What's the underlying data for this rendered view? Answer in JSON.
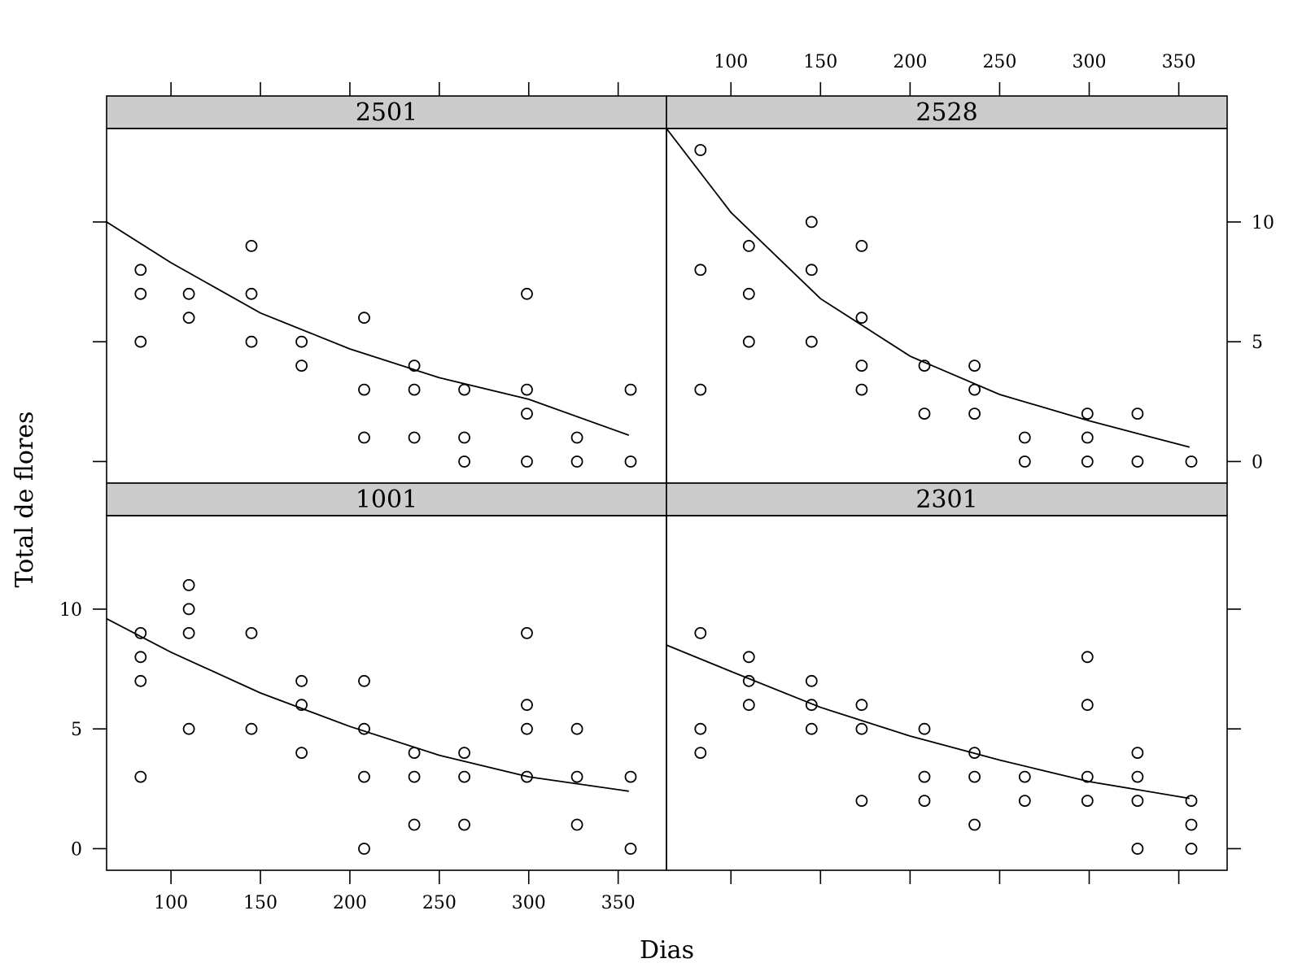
{
  "chart_data": {
    "type": "scatter",
    "xlabel": "Dias",
    "ylabel": "Total de flores",
    "xlim": [
      64,
      377
    ],
    "ylim": [
      -0.9,
      13.9
    ],
    "x_ticks": [
      100,
      150,
      200,
      250,
      300,
      350
    ],
    "y_ticks": [
      0,
      5,
      10
    ],
    "grid": false,
    "layout": "2x2 lattice",
    "panels": [
      {
        "label": "2501",
        "points": [
          [
            83,
            8
          ],
          [
            83,
            7
          ],
          [
            83,
            5
          ],
          [
            110,
            7
          ],
          [
            110,
            6
          ],
          [
            145,
            9
          ],
          [
            145,
            7
          ],
          [
            145,
            5
          ],
          [
            173,
            5
          ],
          [
            173,
            4
          ],
          [
            208,
            6
          ],
          [
            208,
            3
          ],
          [
            208,
            1
          ],
          [
            236,
            4
          ],
          [
            236,
            3
          ],
          [
            236,
            1
          ],
          [
            264,
            3
          ],
          [
            264,
            1
          ],
          [
            264,
            0
          ],
          [
            299,
            7
          ],
          [
            299,
            3
          ],
          [
            299,
            2
          ],
          [
            299,
            0
          ],
          [
            327,
            1
          ],
          [
            327,
            0
          ],
          [
            357,
            3
          ],
          [
            357,
            0
          ]
        ],
        "curve": [
          [
            64,
            10.0
          ],
          [
            100,
            8.3
          ],
          [
            150,
            6.2
          ],
          [
            200,
            4.7
          ],
          [
            250,
            3.5
          ],
          [
            300,
            2.6
          ],
          [
            356,
            1.1
          ]
        ]
      },
      {
        "label": "2528",
        "points": [
          [
            83,
            13
          ],
          [
            83,
            8
          ],
          [
            83,
            3
          ],
          [
            110,
            9
          ],
          [
            110,
            7
          ],
          [
            110,
            5
          ],
          [
            145,
            10
          ],
          [
            145,
            8
          ],
          [
            145,
            5
          ],
          [
            173,
            9
          ],
          [
            173,
            6
          ],
          [
            173,
            4
          ],
          [
            173,
            3
          ],
          [
            208,
            4
          ],
          [
            208,
            2
          ],
          [
            236,
            4
          ],
          [
            236,
            3
          ],
          [
            236,
            2
          ],
          [
            264,
            1
          ],
          [
            264,
            0
          ],
          [
            299,
            2
          ],
          [
            299,
            1
          ],
          [
            299,
            0
          ],
          [
            327,
            2
          ],
          [
            327,
            0
          ],
          [
            357,
            0
          ]
        ],
        "curve": [
          [
            64,
            13.9
          ],
          [
            100,
            10.4
          ],
          [
            150,
            6.8
          ],
          [
            200,
            4.4
          ],
          [
            250,
            2.8
          ],
          [
            300,
            1.7
          ],
          [
            356,
            0.6
          ]
        ]
      },
      {
        "label": "1001",
        "points": [
          [
            83,
            9
          ],
          [
            83,
            8
          ],
          [
            83,
            7
          ],
          [
            83,
            3
          ],
          [
            110,
            11
          ],
          [
            110,
            10
          ],
          [
            110,
            9
          ],
          [
            110,
            5
          ],
          [
            145,
            9
          ],
          [
            145,
            5
          ],
          [
            173,
            7
          ],
          [
            173,
            6
          ],
          [
            173,
            4
          ],
          [
            208,
            7
          ],
          [
            208,
            5
          ],
          [
            208,
            3
          ],
          [
            208,
            0
          ],
          [
            236,
            4
          ],
          [
            236,
            3
          ],
          [
            236,
            1
          ],
          [
            264,
            4
          ],
          [
            264,
            3
          ],
          [
            264,
            1
          ],
          [
            299,
            9
          ],
          [
            299,
            6
          ],
          [
            299,
            5
          ],
          [
            299,
            3
          ],
          [
            327,
            5
          ],
          [
            327,
            3
          ],
          [
            327,
            1
          ],
          [
            357,
            3
          ],
          [
            357,
            0
          ]
        ],
        "curve": [
          [
            64,
            9.6
          ],
          [
            100,
            8.2
          ],
          [
            150,
            6.5
          ],
          [
            200,
            5.1
          ],
          [
            250,
            3.9
          ],
          [
            300,
            3.0
          ],
          [
            356,
            2.4
          ]
        ]
      },
      {
        "label": "2301",
        "points": [
          [
            83,
            9
          ],
          [
            83,
            5
          ],
          [
            83,
            4
          ],
          [
            110,
            8
          ],
          [
            110,
            7
          ],
          [
            110,
            6
          ],
          [
            145,
            7
          ],
          [
            145,
            6
          ],
          [
            145,
            5
          ],
          [
            173,
            6
          ],
          [
            173,
            5
          ],
          [
            173,
            2
          ],
          [
            208,
            5
          ],
          [
            208,
            3
          ],
          [
            208,
            2
          ],
          [
            236,
            4
          ],
          [
            236,
            3
          ],
          [
            236,
            1
          ],
          [
            264,
            3
          ],
          [
            264,
            2
          ],
          [
            299,
            8
          ],
          [
            299,
            6
          ],
          [
            299,
            3
          ],
          [
            299,
            2
          ],
          [
            327,
            4
          ],
          [
            327,
            3
          ],
          [
            327,
            2
          ],
          [
            327,
            0
          ],
          [
            357,
            2
          ],
          [
            357,
            1
          ],
          [
            357,
            0
          ]
        ],
        "curve": [
          [
            64,
            8.5
          ],
          [
            100,
            7.4
          ],
          [
            150,
            5.9
          ],
          [
            200,
            4.7
          ],
          [
            250,
            3.7
          ],
          [
            300,
            2.8
          ],
          [
            356,
            2.1
          ]
        ]
      }
    ]
  }
}
